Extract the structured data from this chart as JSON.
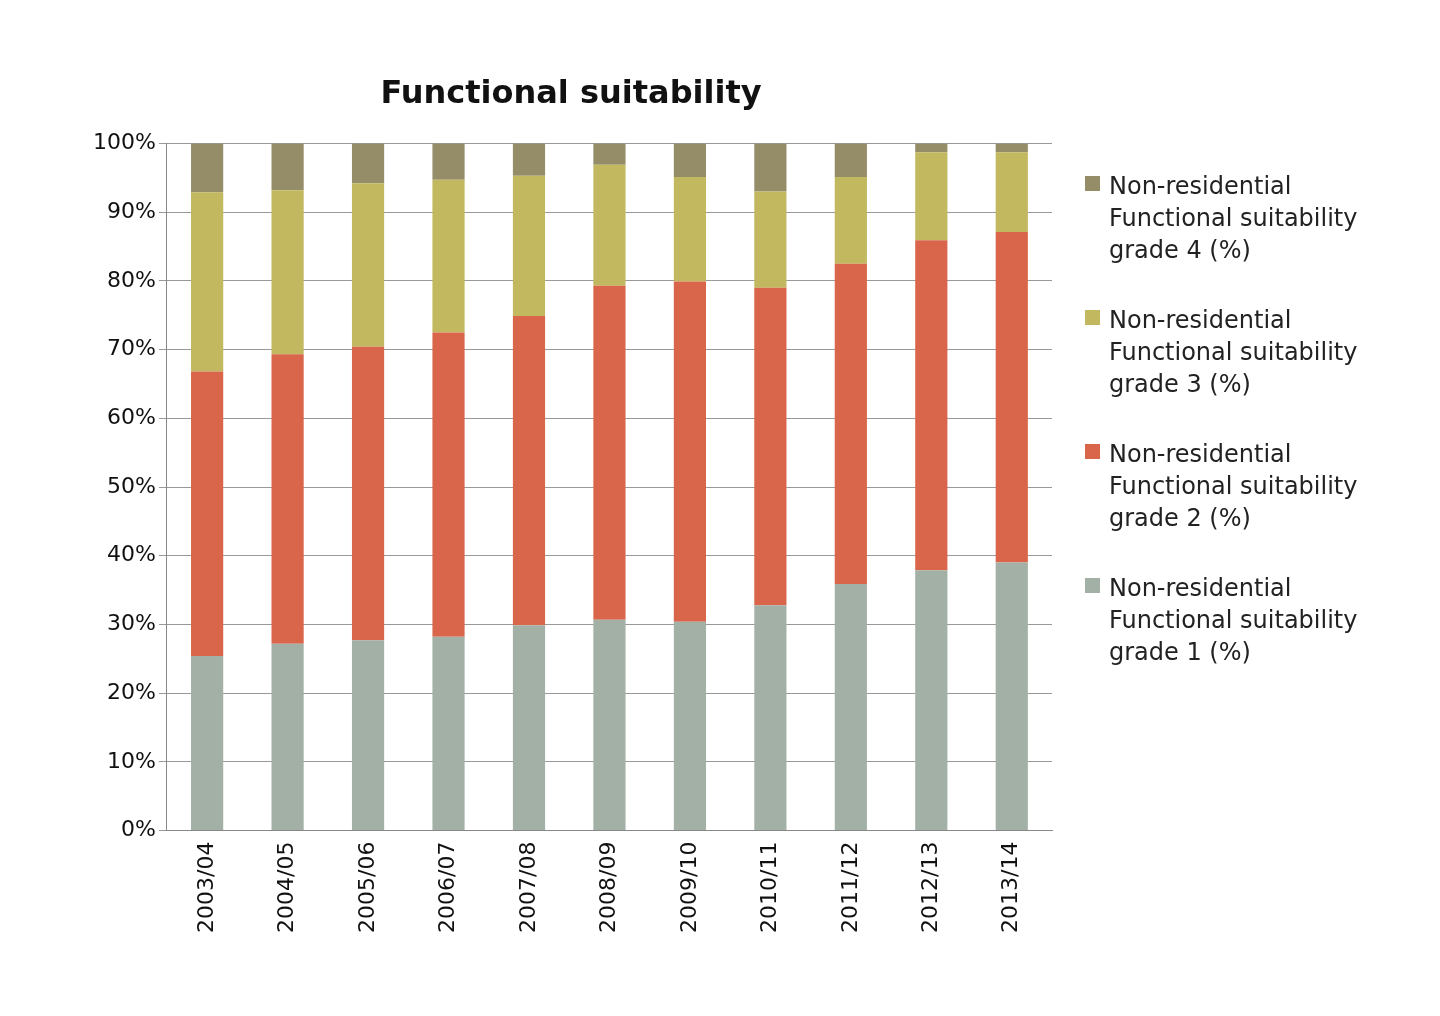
{
  "chart_data": {
    "type": "bar",
    "title": "Functional suitability",
    "stacked": true,
    "categories": [
      "2003/04",
      "2004/05",
      "2005/06",
      "2006/07",
      "2007/08",
      "2008/09",
      "2009/10",
      "2010/11",
      "2011/12",
      "2012/13",
      "2013/14"
    ],
    "series": [
      {
        "name": "Non-residential Functional suitability grade 1 (%)",
        "color": "#a3b0a6",
        "values": [
          25.4,
          27.2,
          27.7,
          28.2,
          29.9,
          30.7,
          30.4,
          32.8,
          35.9,
          37.9,
          39.0
        ]
      },
      {
        "name": "Non-residential Functional suitability grade 2 (%)",
        "color": "#d9664a",
        "values": [
          41.4,
          42.1,
          42.7,
          44.3,
          45.0,
          48.6,
          49.5,
          46.2,
          46.6,
          48.0,
          48.1
        ]
      },
      {
        "name": "Non-residential Functional suitability grade 3 (%)",
        "color": "#c1b85f",
        "values": [
          26.1,
          23.9,
          23.8,
          22.2,
          20.4,
          17.6,
          15.2,
          14.0,
          12.6,
          12.8,
          11.6
        ]
      },
      {
        "name": "Non-residential Functional suitability grade 4 (%)",
        "color": "#958c68",
        "values": [
          7.1,
          6.8,
          5.8,
          5.3,
          4.7,
          3.1,
          4.9,
          7.0,
          4.9,
          1.3,
          1.3
        ]
      }
    ],
    "ylim": [
      0,
      100
    ],
    "yticks": [
      {
        "value": 0,
        "label": "0%"
      },
      {
        "value": 10,
        "label": "10%"
      },
      {
        "value": 20,
        "label": "20%"
      },
      {
        "value": 30,
        "label": "30%"
      },
      {
        "value": 40,
        "label": "40%"
      },
      {
        "value": 50,
        "label": "50%"
      },
      {
        "value": 60,
        "label": "60%"
      },
      {
        "value": 70,
        "label": "70%"
      },
      {
        "value": 80,
        "label": "80%"
      },
      {
        "value": 90,
        "label": "90%"
      },
      {
        "value": 100,
        "label": "100%"
      }
    ],
    "grid": "y",
    "legend": "right"
  }
}
